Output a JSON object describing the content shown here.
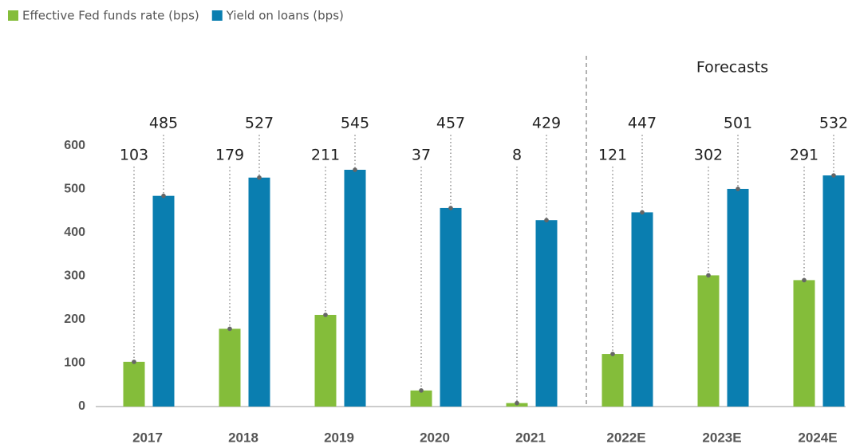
{
  "chart_data": {
    "type": "bar",
    "categories": [
      "2017",
      "2018",
      "2019",
      "2020",
      "2021",
      "2022E",
      "2023E",
      "2024E"
    ],
    "series": [
      {
        "name": "Effective Fed funds rate (bps)",
        "color": "#84bd3a",
        "values": [
          103,
          179,
          211,
          37,
          8,
          121,
          302,
          291
        ]
      },
      {
        "name": "Yield on loans (bps)",
        "color": "#0a7eb0",
        "values": [
          485,
          527,
          545,
          457,
          429,
          447,
          501,
          532
        ]
      }
    ],
    "annotation": "Forecasts",
    "ylim": [
      0,
      600
    ],
    "yticks": [
      0,
      100,
      200,
      300,
      400,
      500,
      600
    ],
    "grid": false,
    "legend": "top-left"
  }
}
